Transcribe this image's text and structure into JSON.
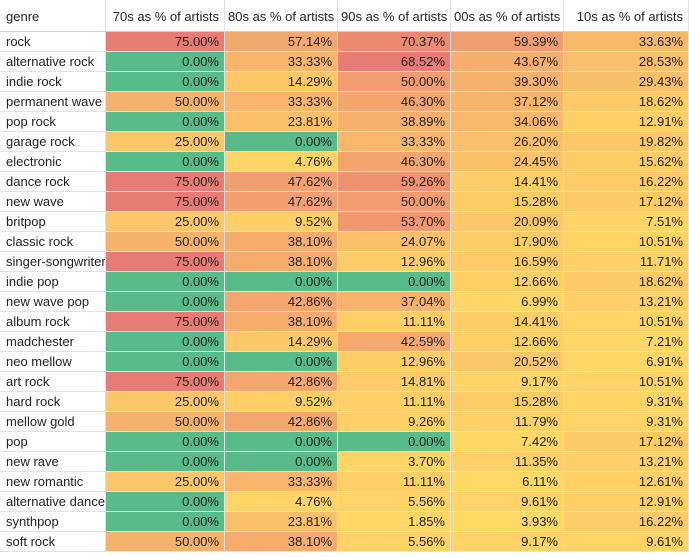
{
  "headers": [
    "genre",
    "70s as % of artists",
    "80s as % of artists",
    "90s as % of artists",
    "00s as % of artists",
    "10s as % of artists"
  ],
  "rows": [
    {
      "genre": "rock",
      "values": [
        "75.00%",
        "57.14%",
        "70.37%",
        "59.39%",
        "33.63%"
      ],
      "colors": [
        "#e67c73",
        "#f1a96e",
        "#ea8b71",
        "#ef9f6f",
        "#f8b96b"
      ]
    },
    {
      "genre": "alternative rock",
      "values": [
        "0.00%",
        "33.33%",
        "68.52%",
        "43.67%",
        "28.53%"
      ],
      "colors": [
        "#57bb8a",
        "#f8b56b",
        "#e67c73",
        "#f5ae6d",
        "#f9bf6a"
      ]
    },
    {
      "genre": "indie rock",
      "values": [
        "0.00%",
        "14.29%",
        "50.00%",
        "39.30%",
        "29.43%"
      ],
      "colors": [
        "#57bb8a",
        "#fdc868",
        "#f29d6f",
        "#f6b16c",
        "#f9be6a"
      ]
    },
    {
      "genre": "permanent wave",
      "values": [
        "50.00%",
        "33.33%",
        "46.30%",
        "37.12%",
        "18.62%"
      ],
      "colors": [
        "#f5b26c",
        "#f8b56b",
        "#f4a56e",
        "#f7b56b",
        "#fdca67"
      ]
    },
    {
      "genre": "pop rock",
      "values": [
        "0.00%",
        "23.81%",
        "38.89%",
        "34.06%",
        "12.91%"
      ],
      "colors": [
        "#57bb8a",
        "#fac068",
        "#f6b16c",
        "#f8b76b",
        "#ffd066"
      ]
    },
    {
      "genre": "garage rock",
      "values": [
        "25.00%",
        "0.00%",
        "33.33%",
        "26.20%",
        "19.82%"
      ],
      "colors": [
        "#fcc76a",
        "#57bb8a",
        "#f8b76b",
        "#fabf69",
        "#fcc868"
      ]
    },
    {
      "genre": "electronic",
      "values": [
        "0.00%",
        "4.76%",
        "46.30%",
        "24.45%",
        "15.62%"
      ],
      "colors": [
        "#57bb8a",
        "#ffd466",
        "#f4a56e",
        "#fbc169",
        "#fdcc67"
      ]
    },
    {
      "genre": "dance rock",
      "values": [
        "75.00%",
        "47.62%",
        "59.26%",
        "14.41%",
        "16.22%"
      ],
      "colors": [
        "#e67c73",
        "#f2a06f",
        "#ee9270",
        "#fdcd67",
        "#fdcb67"
      ]
    },
    {
      "genre": "new wave",
      "values": [
        "75.00%",
        "47.62%",
        "50.00%",
        "15.28%",
        "17.12%"
      ],
      "colors": [
        "#e67c73",
        "#f2a06f",
        "#f29d6f",
        "#fdcc67",
        "#fdca67"
      ]
    },
    {
      "genre": "britpop",
      "values": [
        "25.00%",
        "9.52%",
        "53.70%",
        "20.09%",
        "7.51%"
      ],
      "colors": [
        "#fcc76a",
        "#fecf66",
        "#f19870",
        "#fcc868",
        "#ffd666"
      ]
    },
    {
      "genre": "classic rock",
      "values": [
        "50.00%",
        "38.10%",
        "24.07%",
        "17.90%",
        "10.51%"
      ],
      "colors": [
        "#f5b26c",
        "#f5ac6d",
        "#fac069",
        "#fdcb67",
        "#ffd366"
      ]
    },
    {
      "genre": "singer-songwriter",
      "values": [
        "75.00%",
        "38.10%",
        "12.96%",
        "16.59%",
        "11.71%"
      ],
      "colors": [
        "#e67c73",
        "#f5ac6d",
        "#fdcd67",
        "#fdcb67",
        "#ffd166"
      ]
    },
    {
      "genre": "indie pop",
      "values": [
        "0.00%",
        "0.00%",
        "0.00%",
        "12.66%",
        "18.62%"
      ],
      "colors": [
        "#57bb8a",
        "#57bb8a",
        "#57bb8a",
        "#ffd066",
        "#fdca67"
      ]
    },
    {
      "genre": "new wave pop",
      "values": [
        "0.00%",
        "42.86%",
        "37.04%",
        "6.99%",
        "13.21%"
      ],
      "colors": [
        "#57bb8a",
        "#f3a66e",
        "#f7b36c",
        "#ffd766",
        "#ffd066"
      ]
    },
    {
      "genre": "album rock",
      "values": [
        "75.00%",
        "38.10%",
        "11.11%",
        "14.41%",
        "10.51%"
      ],
      "colors": [
        "#e67c73",
        "#f5ac6d",
        "#fecf66",
        "#fdcd67",
        "#ffd366"
      ]
    },
    {
      "genre": "madchester",
      "values": [
        "0.00%",
        "14.29%",
        "42.59%",
        "12.66%",
        "7.21%"
      ],
      "colors": [
        "#57bb8a",
        "#fdc868",
        "#f5a96d",
        "#ffd066",
        "#ffd766"
      ]
    },
    {
      "genre": "neo mellow",
      "values": [
        "0.00%",
        "0.00%",
        "12.96%",
        "20.52%",
        "6.91%"
      ],
      "colors": [
        "#57bb8a",
        "#57bb8a",
        "#fdcd67",
        "#fcc768",
        "#ffd766"
      ]
    },
    {
      "genre": "art rock",
      "values": [
        "75.00%",
        "42.86%",
        "14.81%",
        "9.17%",
        "10.51%"
      ],
      "colors": [
        "#e67c73",
        "#f3a66e",
        "#fdcb67",
        "#ffd466",
        "#ffd366"
      ]
    },
    {
      "genre": "hard rock",
      "values": [
        "25.00%",
        "9.52%",
        "11.11%",
        "15.28%",
        "9.31%"
      ],
      "colors": [
        "#fcc76a",
        "#fecf66",
        "#fecf66",
        "#fdcc67",
        "#ffd466"
      ]
    },
    {
      "genre": "mellow gold",
      "values": [
        "50.00%",
        "42.86%",
        "9.26%",
        "11.79%",
        "9.31%"
      ],
      "colors": [
        "#f5b26c",
        "#f3a66e",
        "#ffd166",
        "#ffd166",
        "#ffd466"
      ]
    },
    {
      "genre": "pop",
      "values": [
        "0.00%",
        "0.00%",
        "0.00%",
        "7.42%",
        "17.12%"
      ],
      "colors": [
        "#57bb8a",
        "#57bb8a",
        "#57bb8a",
        "#ffd766",
        "#fdca67"
      ]
    },
    {
      "genre": "new rave",
      "values": [
        "0.00%",
        "0.00%",
        "3.70%",
        "11.35%",
        "13.21%"
      ],
      "colors": [
        "#57bb8a",
        "#57bb8a",
        "#ffd666",
        "#ffd166",
        "#ffd066"
      ]
    },
    {
      "genre": "new romantic",
      "values": [
        "25.00%",
        "33.33%",
        "11.11%",
        "6.11%",
        "12.61%"
      ],
      "colors": [
        "#fcc76a",
        "#f8b56b",
        "#fecf66",
        "#ffd866",
        "#ffd166"
      ]
    },
    {
      "genre": "alternative dance",
      "values": [
        "0.00%",
        "4.76%",
        "5.56%",
        "9.61%",
        "12.91%"
      ],
      "colors": [
        "#57bb8a",
        "#ffd466",
        "#ffd466",
        "#ffd466",
        "#ffd066"
      ]
    },
    {
      "genre": "synthpop",
      "values": [
        "0.00%",
        "23.81%",
        "1.85%",
        "3.93%",
        "16.22%"
      ],
      "colors": [
        "#57bb8a",
        "#fac068",
        "#ffd766",
        "#ffd966",
        "#fdcb67"
      ]
    },
    {
      "genre": "soft rock",
      "values": [
        "50.00%",
        "38.10%",
        "5.56%",
        "9.17%",
        "9.61%"
      ],
      "colors": [
        "#f5b26c",
        "#f5ac6d",
        "#ffd466",
        "#ffd466",
        "#ffd466"
      ]
    }
  ]
}
